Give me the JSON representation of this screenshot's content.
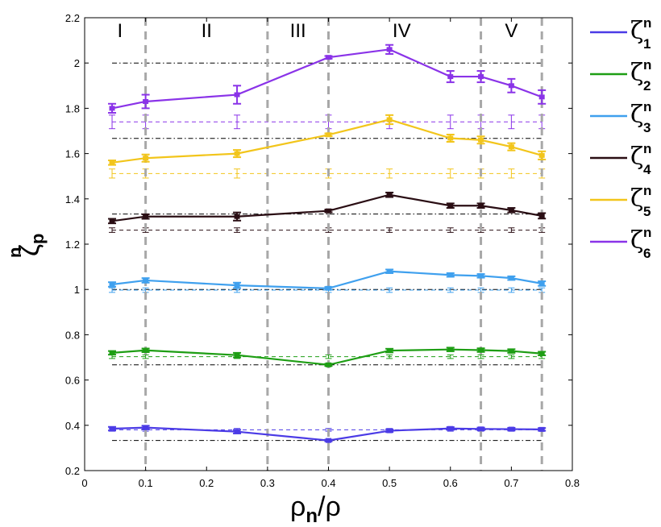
{
  "chart_data": {
    "type": "line",
    "title": "",
    "xlabel_main": "ρ",
    "xlabel_sub": "n",
    "xlabel_tail": "/ρ",
    "ylabel_main": "ζ",
    "ylabel_sub": "p",
    "ylabel_sup": "n",
    "xlim": [
      0,
      0.8
    ],
    "ylim": [
      0.2,
      2.2
    ],
    "xticks": [
      0,
      0.1,
      0.2,
      0.3,
      0.4,
      0.5,
      0.6,
      0.7,
      0.8
    ],
    "xtick_labels": [
      "0",
      "0.1",
      "0.2",
      "0.3",
      "0.4",
      "0.5",
      "0.6",
      "0.7",
      "0.8"
    ],
    "yticks": [
      0.2,
      0.4,
      0.6,
      0.8,
      1,
      1.2,
      1.4,
      1.6,
      1.8,
      2,
      2.2
    ],
    "ytick_labels": [
      "0.2",
      "0.4",
      "0.6",
      "0.8",
      "1",
      "1.2",
      "1.4",
      "1.6",
      "1.8",
      "2",
      "2.2"
    ],
    "region_dividers_x": [
      0.1,
      0.3,
      0.4,
      0.65,
      0.75
    ],
    "regions": [
      {
        "label": "I",
        "x": 0.058
      },
      {
        "label": "II",
        "x": 0.2
      },
      {
        "label": "III",
        "x": 0.35
      },
      {
        "label": "IV",
        "x": 0.52
      },
      {
        "label": "V",
        "x": 0.7
      }
    ],
    "reference_levels": [
      0.333,
      0.667,
      1.0,
      1.333,
      1.667,
      2.0
    ],
    "x": [
      0.045,
      0.1,
      0.25,
      0.4,
      0.5,
      0.6,
      0.65,
      0.7,
      0.75
    ],
    "series": [
      {
        "name": "ζ",
        "sup": "n",
        "sub": "1",
        "color": "#4B3BE6",
        "values": [
          0.385,
          0.39,
          0.372,
          0.333,
          0.376,
          0.386,
          0.384,
          0.383,
          0.382
        ],
        "errors": [
          0.008,
          0.008,
          0.008,
          0.004,
          0.006,
          0.006,
          0.006,
          0.006,
          0.006
        ],
        "baseline": 0.38,
        "baseline_err": 0.006
      },
      {
        "name": "ζ",
        "sup": "n",
        "sub": "2",
        "color": "#1E9E14",
        "values": [
          0.72,
          0.731,
          0.71,
          0.667,
          0.73,
          0.735,
          0.732,
          0.728,
          0.717
        ],
        "errors": [
          0.008,
          0.008,
          0.01,
          0.005,
          0.008,
          0.008,
          0.008,
          0.008,
          0.008
        ],
        "baseline": 0.703,
        "baseline_err": 0.008
      },
      {
        "name": "ζ",
        "sup": "n",
        "sub": "3",
        "color": "#3FA0EE",
        "values": [
          1.022,
          1.04,
          1.018,
          1.005,
          1.08,
          1.064,
          1.06,
          1.05,
          1.026
        ],
        "errors": [
          0.01,
          0.01,
          0.012,
          0.006,
          0.008,
          0.008,
          0.008,
          0.008,
          0.01
        ],
        "baseline": 0.997,
        "baseline_err": 0.01
      },
      {
        "name": "ζ",
        "sup": "n",
        "sub": "4",
        "color": "#2A0E14",
        "values": [
          1.302,
          1.322,
          1.322,
          1.347,
          1.418,
          1.37,
          1.37,
          1.35,
          1.325
        ],
        "errors": [
          0.01,
          0.01,
          0.018,
          0.006,
          0.01,
          0.01,
          0.01,
          0.01,
          0.012
        ],
        "baseline": 1.262,
        "baseline_err": 0.01
      },
      {
        "name": "ζ",
        "sup": "n",
        "sub": "5",
        "color": "#F2C51B",
        "values": [
          1.56,
          1.58,
          1.6,
          1.683,
          1.75,
          1.668,
          1.66,
          1.63,
          1.592
        ],
        "errors": [
          0.01,
          0.016,
          0.016,
          0.006,
          0.02,
          0.016,
          0.016,
          0.016,
          0.018
        ],
        "baseline": 1.512,
        "baseline_err": 0.02
      },
      {
        "name": "ζ",
        "sup": "n",
        "sub": "6",
        "color": "#8A33E8",
        "values": [
          1.8,
          1.83,
          1.86,
          2.025,
          2.06,
          1.94,
          1.94,
          1.9,
          1.85
        ],
        "errors": [
          0.02,
          0.03,
          0.04,
          0.006,
          0.02,
          0.025,
          0.025,
          0.03,
          0.03
        ],
        "baseline": 1.74,
        "baseline_err": 0.03
      }
    ]
  }
}
